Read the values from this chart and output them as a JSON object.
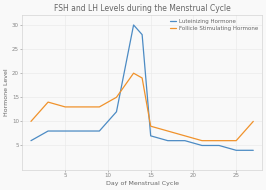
{
  "title": "FSH and LH Levels during the Menstrual Cycle",
  "xlabel": "Day of Menstrual Cycle",
  "ylabel": "Hormone Level",
  "lh_x": [
    1,
    3,
    5,
    7,
    9,
    11,
    13,
    14,
    15,
    17,
    19,
    21,
    23,
    25,
    27
  ],
  "lh_y": [
    6,
    8,
    8,
    8,
    8,
    12,
    30,
    28,
    7,
    6,
    6,
    5,
    5,
    4,
    4
  ],
  "fsh_x": [
    1,
    3,
    5,
    7,
    9,
    11,
    13,
    14,
    15,
    17,
    19,
    21,
    23,
    25,
    27
  ],
  "fsh_y": [
    10,
    14,
    13,
    13,
    13,
    15,
    20,
    19,
    9,
    8,
    7,
    6,
    6,
    6,
    10
  ],
  "lh_color": "#4c8bc4",
  "fsh_color": "#f0922b",
  "lh_label": "Luteinizing Hormone",
  "fsh_label": "Follicle Stimulating Hormone",
  "xlim": [
    0,
    28
  ],
  "ylim": [
    0,
    32
  ],
  "xticks": [
    5,
    10,
    15,
    20,
    25
  ],
  "yticks": [
    5,
    10,
    15,
    20,
    25,
    30
  ],
  "grid_color": "#e8e8e8",
  "bg_color": "#f9f9f9",
  "title_fontsize": 5.5,
  "label_fontsize": 4.5,
  "tick_fontsize": 4,
  "legend_fontsize": 4,
  "linewidth": 0.9
}
